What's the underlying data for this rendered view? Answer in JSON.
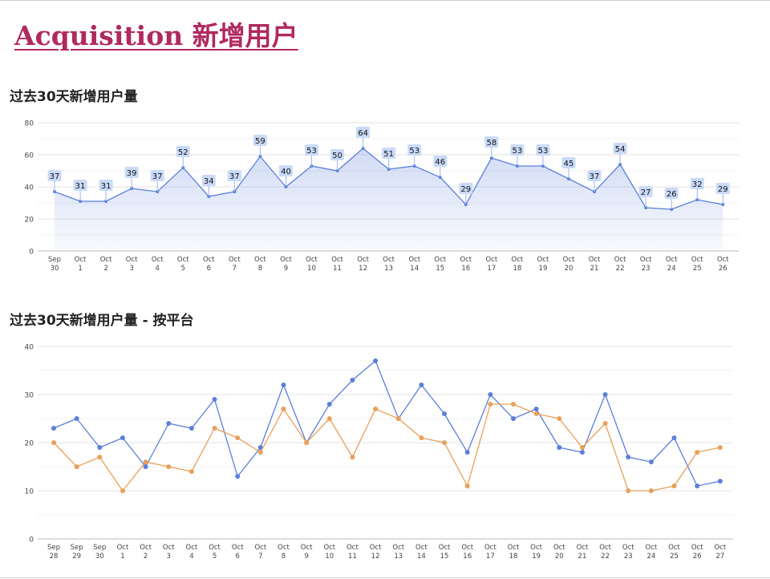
{
  "page": {
    "title": "Acquisition 新增用户"
  },
  "colors": {
    "title": "#b0295f",
    "series_blue": "#5b7fdb",
    "series_orange": "#e8a05a",
    "label_bg": "#c9daf8",
    "grid": "#e3e3e3"
  },
  "chart_data": [
    {
      "type": "area",
      "title": "过去30天新增用户量",
      "xlabel": "",
      "ylabel": "",
      "ylim": [
        0,
        80
      ],
      "yticks": [
        0,
        20,
        40,
        60,
        80
      ],
      "grid": true,
      "data_labels": true,
      "categories": [
        [
          "Sep",
          "30"
        ],
        [
          "Oct",
          "1"
        ],
        [
          "Oct",
          "2"
        ],
        [
          "Oct",
          "3"
        ],
        [
          "Oct",
          "4"
        ],
        [
          "Oct",
          "5"
        ],
        [
          "Oct",
          "6"
        ],
        [
          "Oct",
          "7"
        ],
        [
          "Oct",
          "8"
        ],
        [
          "Oct",
          "9"
        ],
        [
          "Oct",
          "10"
        ],
        [
          "Oct",
          "11"
        ],
        [
          "Oct",
          "12"
        ],
        [
          "Oct",
          "13"
        ],
        [
          "Oct",
          "14"
        ],
        [
          "Oct",
          "15"
        ],
        [
          "Oct",
          "16"
        ],
        [
          "Oct",
          "17"
        ],
        [
          "Oct",
          "18"
        ],
        [
          "Oct",
          "19"
        ],
        [
          "Oct",
          "20"
        ],
        [
          "Oct",
          "21"
        ],
        [
          "Oct",
          "22"
        ],
        [
          "Oct",
          "23"
        ],
        [
          "Oct",
          "24"
        ],
        [
          "Oct",
          "25"
        ],
        [
          "Oct",
          "26"
        ]
      ],
      "series": [
        {
          "values": [
            37,
            31,
            31,
            39,
            37,
            52,
            34,
            37,
            59,
            40,
            53,
            50,
            64,
            51,
            53,
            46,
            29,
            58,
            53,
            53,
            45,
            37,
            54,
            27,
            26,
            32,
            29
          ]
        }
      ]
    },
    {
      "type": "line",
      "title": "过去30天新增用户量 - 按平台",
      "xlabel": "",
      "ylabel": "",
      "ylim": [
        0,
        40
      ],
      "yticks": [
        0,
        10,
        20,
        30,
        40
      ],
      "grid": true,
      "categories": [
        [
          "Sep",
          "28"
        ],
        [
          "Sep",
          "29"
        ],
        [
          "Sep",
          "30"
        ],
        [
          "Oct",
          "1"
        ],
        [
          "Oct",
          "2"
        ],
        [
          "Oct",
          "3"
        ],
        [
          "Oct",
          "4"
        ],
        [
          "Oct",
          "5"
        ],
        [
          "Oct",
          "6"
        ],
        [
          "Oct",
          "7"
        ],
        [
          "Oct",
          "8"
        ],
        [
          "Oct",
          "9"
        ],
        [
          "Oct",
          "10"
        ],
        [
          "Oct",
          "11"
        ],
        [
          "Oct",
          "12"
        ],
        [
          "Oct",
          "13"
        ],
        [
          "Oct",
          "14"
        ],
        [
          "Oct",
          "15"
        ],
        [
          "Oct",
          "16"
        ],
        [
          "Oct",
          "17"
        ],
        [
          "Oct",
          "18"
        ],
        [
          "Oct",
          "19"
        ],
        [
          "Oct",
          "20"
        ],
        [
          "Oct",
          "21"
        ],
        [
          "Oct",
          "22"
        ],
        [
          "Oct",
          "23"
        ],
        [
          "Oct",
          "24"
        ],
        [
          "Oct",
          "25"
        ],
        [
          "Oct",
          "26"
        ],
        [
          "Oct",
          "27"
        ]
      ],
      "series": [
        {
          "color": "#5b7fdb",
          "values": [
            23,
            25,
            19,
            21,
            15,
            24,
            23,
            29,
            13,
            19,
            32,
            20,
            28,
            33,
            37,
            25,
            32,
            26,
            18,
            30,
            25,
            27,
            19,
            18,
            30,
            17,
            16,
            21,
            11,
            12
          ]
        },
        {
          "color": "#e8a05a",
          "values": [
            20,
            15,
            17,
            10,
            16,
            15,
            14,
            23,
            21,
            18,
            27,
            20,
            25,
            17,
            27,
            25,
            21,
            20,
            11,
            28,
            28,
            26,
            25,
            19,
            24,
            10,
            10,
            11,
            18,
            19
          ]
        }
      ]
    }
  ]
}
